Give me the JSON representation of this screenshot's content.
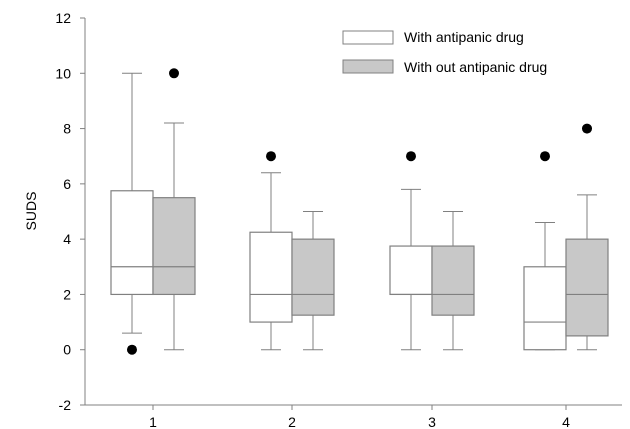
{
  "chart_data": {
    "type": "box",
    "title": "",
    "xlabel": "",
    "ylabel": "SUDS",
    "ylim": [
      -2,
      12
    ],
    "yticks": [
      "-2",
      "0",
      "2",
      "4",
      "6",
      "8",
      "10",
      "12"
    ],
    "categories": [
      "1",
      "2",
      "3",
      "4"
    ],
    "grid": false,
    "legend_position": "top-right",
    "colors": {
      "with": "#ffffff",
      "without": "#c8c8c8",
      "stroke": "#808080",
      "outlier": "#000000"
    },
    "series": [
      {
        "name": "With antipanic drug",
        "boxes": [
          {
            "category": "1",
            "whisker_low": 0.6,
            "q1": 2.0,
            "median": 3.0,
            "q3": 5.75,
            "whisker_high": 10.0,
            "outliers": [
              0
            ]
          },
          {
            "category": "2",
            "whisker_low": 0.0,
            "q1": 1.0,
            "median": 2.0,
            "q3": 4.25,
            "whisker_high": 6.4,
            "outliers": [
              7
            ]
          },
          {
            "category": "3",
            "whisker_low": 0.0,
            "q1": 2.0,
            "median": 2.0,
            "q3": 3.75,
            "whisker_high": 5.8,
            "outliers": [
              7
            ]
          },
          {
            "category": "4",
            "whisker_low": 0.0,
            "q1": 0.0,
            "median": 1.0,
            "q3": 3.0,
            "whisker_high": 4.6,
            "outliers": [
              7
            ]
          }
        ]
      },
      {
        "name": "With out antipanic drug",
        "boxes": [
          {
            "category": "1",
            "whisker_low": 0.0,
            "q1": 2.0,
            "median": 3.0,
            "q3": 5.5,
            "whisker_high": 8.2,
            "outliers": [
              10
            ]
          },
          {
            "category": "2",
            "whisker_low": 0.0,
            "q1": 1.25,
            "median": 2.0,
            "q3": 4.0,
            "whisker_high": 5.0,
            "outliers": []
          },
          {
            "category": "3",
            "whisker_low": 0.0,
            "q1": 1.25,
            "median": 2.0,
            "q3": 3.75,
            "whisker_high": 5.0,
            "outliers": []
          },
          {
            "category": "4",
            "whisker_low": 0.0,
            "q1": 0.5,
            "median": 2.0,
            "q3": 4.0,
            "whisker_high": 5.6,
            "outliers": [
              8
            ]
          }
        ]
      }
    ]
  }
}
